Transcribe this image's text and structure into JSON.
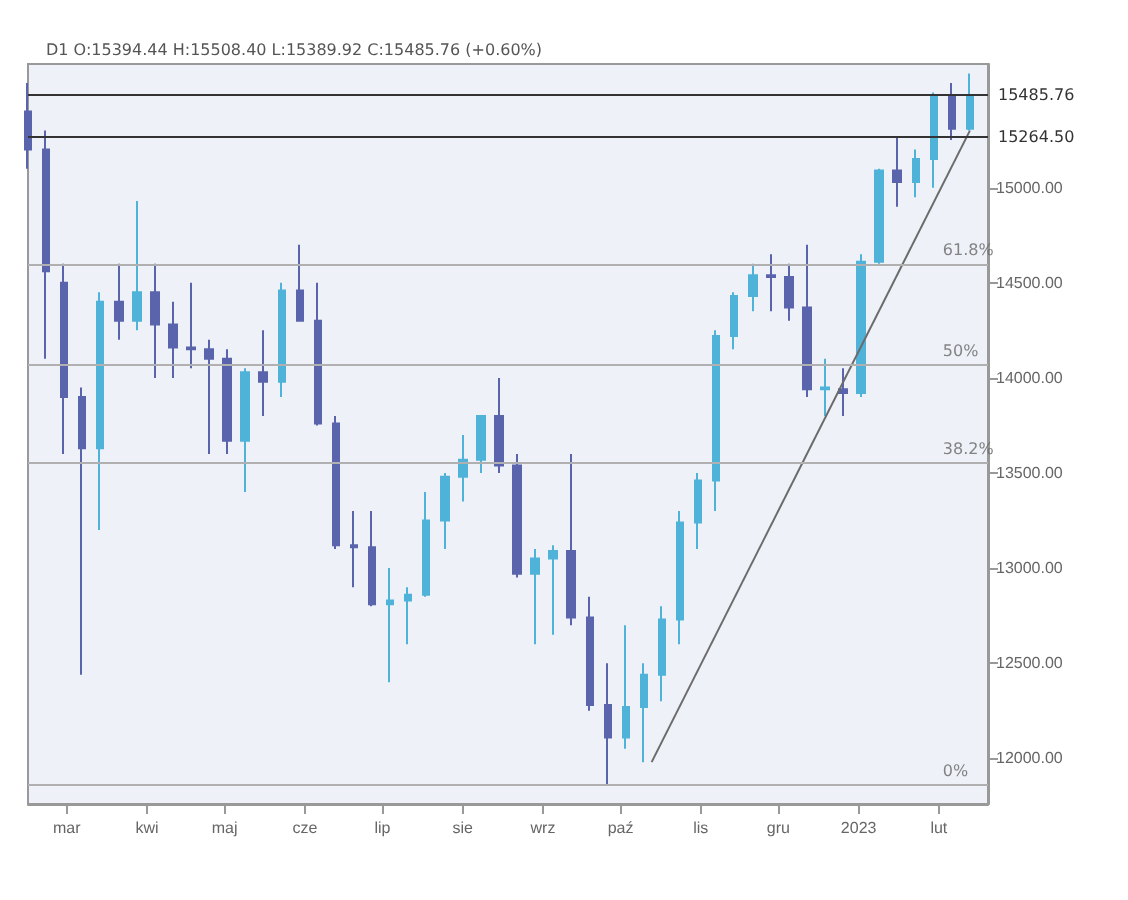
{
  "chart_data": {
    "type": "candlestick",
    "title": "D1 O:15394.44 H:15508.40 L:15389.92 C:15485.76 (+0.60%)",
    "x": [
      "2022-02-14",
      "2022-02-21",
      "2022-02-28",
      "2022-03-07",
      "2022-03-14",
      "2022-03-21",
      "2022-03-28",
      "2022-04-04",
      "2022-04-11",
      "2022-04-18",
      "2022-04-25",
      "2022-05-02",
      "2022-05-09",
      "2022-05-16",
      "2022-05-23",
      "2022-05-30",
      "2022-06-06",
      "2022-06-13",
      "2022-06-20",
      "2022-06-27",
      "2022-07-04",
      "2022-07-11",
      "2022-07-18",
      "2022-07-25",
      "2022-08-01",
      "2022-08-08",
      "2022-08-15",
      "2022-08-22",
      "2022-08-29",
      "2022-09-05",
      "2022-09-12",
      "2022-09-19",
      "2022-09-26",
      "2022-10-03",
      "2022-10-10",
      "2022-10-17",
      "2022-10-24",
      "2022-10-31",
      "2022-11-07",
      "2022-11-14",
      "2022-11-21",
      "2022-11-28",
      "2022-12-05",
      "2022-12-12",
      "2022-12-19",
      "2022-12-26",
      "2023-01-02",
      "2023-01-09",
      "2023-01-16",
      "2023-01-23",
      "2023-01-30",
      "2023-02-06",
      "2023-02-13"
    ],
    "series": [
      {
        "type": "candlestick",
        "colors": [
          "#5a64ad",
          "#5a64ad",
          "#5a64ad",
          "#5a64ad",
          "#4fb3d9",
          "#5a64ad",
          "#4fb3d9",
          "#5a64ad",
          "#5a64ad",
          "#5a64ad",
          "#5a64ad",
          "#5a64ad",
          "#4fb3d9",
          "#5a64ad",
          "#4fb3d9",
          "#5a64ad",
          "#5a64ad",
          "#5a64ad",
          "#5a64ad",
          "#5a64ad",
          "#4fb3d9",
          "#4fb3d9",
          "#4fb3d9",
          "#4fb3d9",
          "#4fb3d9",
          "#4fb3d9",
          "#5a64ad",
          "#5a64ad",
          "#4fb3d9",
          "#4fb3d9",
          "#5a64ad",
          "#5a64ad",
          "#5a64ad",
          "#4fb3d9",
          "#4fb3d9",
          "#4fb3d9",
          "#4fb3d9",
          "#4fb3d9",
          "#4fb3d9",
          "#4fb3d9",
          "#4fb3d9",
          "#5a64ad",
          "#5a64ad",
          "#5a64ad",
          "#4fb3d9",
          "#5a64ad",
          "#4fb3d9",
          "#4fb3d9",
          "#5a64ad",
          "#4fb3d9",
          "#4fb3d9",
          "#5a64ad",
          "#4fb3d9"
        ],
        "ohlc": [
          [
            15400,
            15550,
            15100,
            15200
          ],
          [
            15200,
            15300,
            14100,
            14560
          ],
          [
            14500,
            14600,
            13600,
            13900
          ],
          [
            13900,
            13950,
            12440,
            13630
          ],
          [
            13630,
            14450,
            13200,
            14400
          ],
          [
            14400,
            14600,
            14200,
            14300
          ],
          [
            14300,
            14930,
            14250,
            14450
          ],
          [
            14450,
            14600,
            14000,
            14280
          ],
          [
            14280,
            14400,
            14000,
            14160
          ],
          [
            14160,
            14500,
            14050,
            14150
          ],
          [
            14150,
            14200,
            13600,
            14100
          ],
          [
            14100,
            14150,
            13600,
            13670
          ],
          [
            13670,
            14050,
            13400,
            14030
          ],
          [
            14030,
            14250,
            13800,
            13980
          ],
          [
            13980,
            14500,
            13900,
            14460
          ],
          [
            14460,
            14700,
            14300,
            14300
          ],
          [
            14300,
            14500,
            13750,
            13760
          ],
          [
            13760,
            13800,
            13100,
            13120
          ],
          [
            13120,
            13300,
            12900,
            13110
          ],
          [
            13110,
            13300,
            12800,
            12810
          ],
          [
            12810,
            13000,
            12400,
            12830
          ],
          [
            12830,
            12900,
            12600,
            12860
          ],
          [
            12860,
            13400,
            12850,
            13250
          ],
          [
            13250,
            13500,
            13100,
            13480
          ],
          [
            13480,
            13700,
            13350,
            13570
          ],
          [
            13570,
            13800,
            13500,
            13800
          ],
          [
            13800,
            14000,
            13500,
            13540
          ],
          [
            13540,
            13600,
            12950,
            12970
          ],
          [
            12970,
            13100,
            12600,
            13050
          ],
          [
            13050,
            13120,
            12650,
            13090
          ],
          [
            13090,
            13600,
            12700,
            12740
          ],
          [
            12740,
            12850,
            12250,
            12280
          ],
          [
            12280,
            12500,
            11860,
            12110
          ],
          [
            12110,
            12700,
            12050,
            12270
          ],
          [
            12270,
            12500,
            11980,
            12440
          ],
          [
            12440,
            12800,
            12300,
            12730
          ],
          [
            12730,
            13300,
            12600,
            13240
          ],
          [
            13240,
            13500,
            13100,
            13460
          ],
          [
            13460,
            14250,
            13300,
            14220
          ],
          [
            14220,
            14450,
            14150,
            14430
          ],
          [
            14430,
            14600,
            14350,
            14540
          ],
          [
            14540,
            14650,
            14350,
            14530
          ],
          [
            14530,
            14600,
            14300,
            14370
          ],
          [
            14370,
            14700,
            13900,
            13940
          ],
          [
            13940,
            14100,
            13800,
            13950
          ],
          [
            13940,
            14050,
            13800,
            13920
          ],
          [
            13920,
            14650,
            13900,
            14610
          ],
          [
            14610,
            15100,
            14600,
            15090
          ],
          [
            15090,
            15270,
            14900,
            15030
          ],
          [
            15030,
            15200,
            14950,
            15150
          ],
          [
            15150,
            15500,
            15000,
            15480
          ],
          [
            15480,
            15550,
            15250,
            15310
          ],
          [
            15310,
            15600,
            15300,
            15486
          ]
        ]
      },
      {
        "type": "line",
        "color": "#6b6b6b",
        "x": [
          "2022-10-13",
          "2023-02-13"
        ],
        "values": [
          11980,
          15300
        ]
      }
    ],
    "xlim": [
      "2022-02-14",
      "2023-02-20"
    ],
    "xticks": [
      {
        "value": "2022-03-01",
        "label": "mar"
      },
      {
        "value": "2022-04-01",
        "label": "kwi"
      },
      {
        "value": "2022-05-01",
        "label": "maj"
      },
      {
        "value": "2022-06-01",
        "label": "cze"
      },
      {
        "value": "2022-07-01",
        "label": "lip"
      },
      {
        "value": "2022-08-01",
        "label": "sie"
      },
      {
        "value": "2022-09-01",
        "label": "wrz"
      },
      {
        "value": "2022-10-01",
        "label": "paź"
      },
      {
        "value": "2022-11-01",
        "label": "lis"
      },
      {
        "value": "2022-12-01",
        "label": "gru"
      },
      {
        "value": "2023-01-01",
        "label": "2023"
      },
      {
        "value": "2023-02-01",
        "label": "lut"
      }
    ],
    "ylim": [
      11760,
      15650
    ],
    "yticks": [
      {
        "value": 12000,
        "label": "12000.00"
      },
      {
        "value": 12500,
        "label": "12500.00"
      },
      {
        "value": 13000,
        "label": "13000.00"
      },
      {
        "value": 13500,
        "label": "13500.00"
      },
      {
        "value": 14000,
        "label": "14000.00"
      },
      {
        "value": 14500,
        "label": "14500.00"
      },
      {
        "value": 15000,
        "label": "15000.00"
      }
    ],
    "ref_lines": [
      {
        "axis": "y",
        "value": 15485.76,
        "label": "15485.76",
        "color": "#333333"
      },
      {
        "axis": "y",
        "value": 15264.5,
        "label": "15264.50",
        "color": "#333333"
      },
      {
        "axis": "y",
        "value": 14600,
        "color": "#b0b0b0"
      },
      {
        "axis": "y",
        "value": 14070,
        "color": "#b0b0b0"
      },
      {
        "axis": "y",
        "value": 13550,
        "color": "#b0b0b0"
      },
      {
        "axis": "y",
        "value": 11860,
        "color": "#b0b0b0"
      }
    ],
    "annotations": [
      {
        "text": "61.8%",
        "x": "2023-02-01",
        "y": 14600
      },
      {
        "text": "50%",
        "x": "2023-02-01",
        "y": 14070
      },
      {
        "text": "38.2%",
        "x": "2023-02-01",
        "y": 13550
      },
      {
        "text": "0%",
        "x": "2023-02-01",
        "y": 11860
      }
    ],
    "grid": false
  }
}
